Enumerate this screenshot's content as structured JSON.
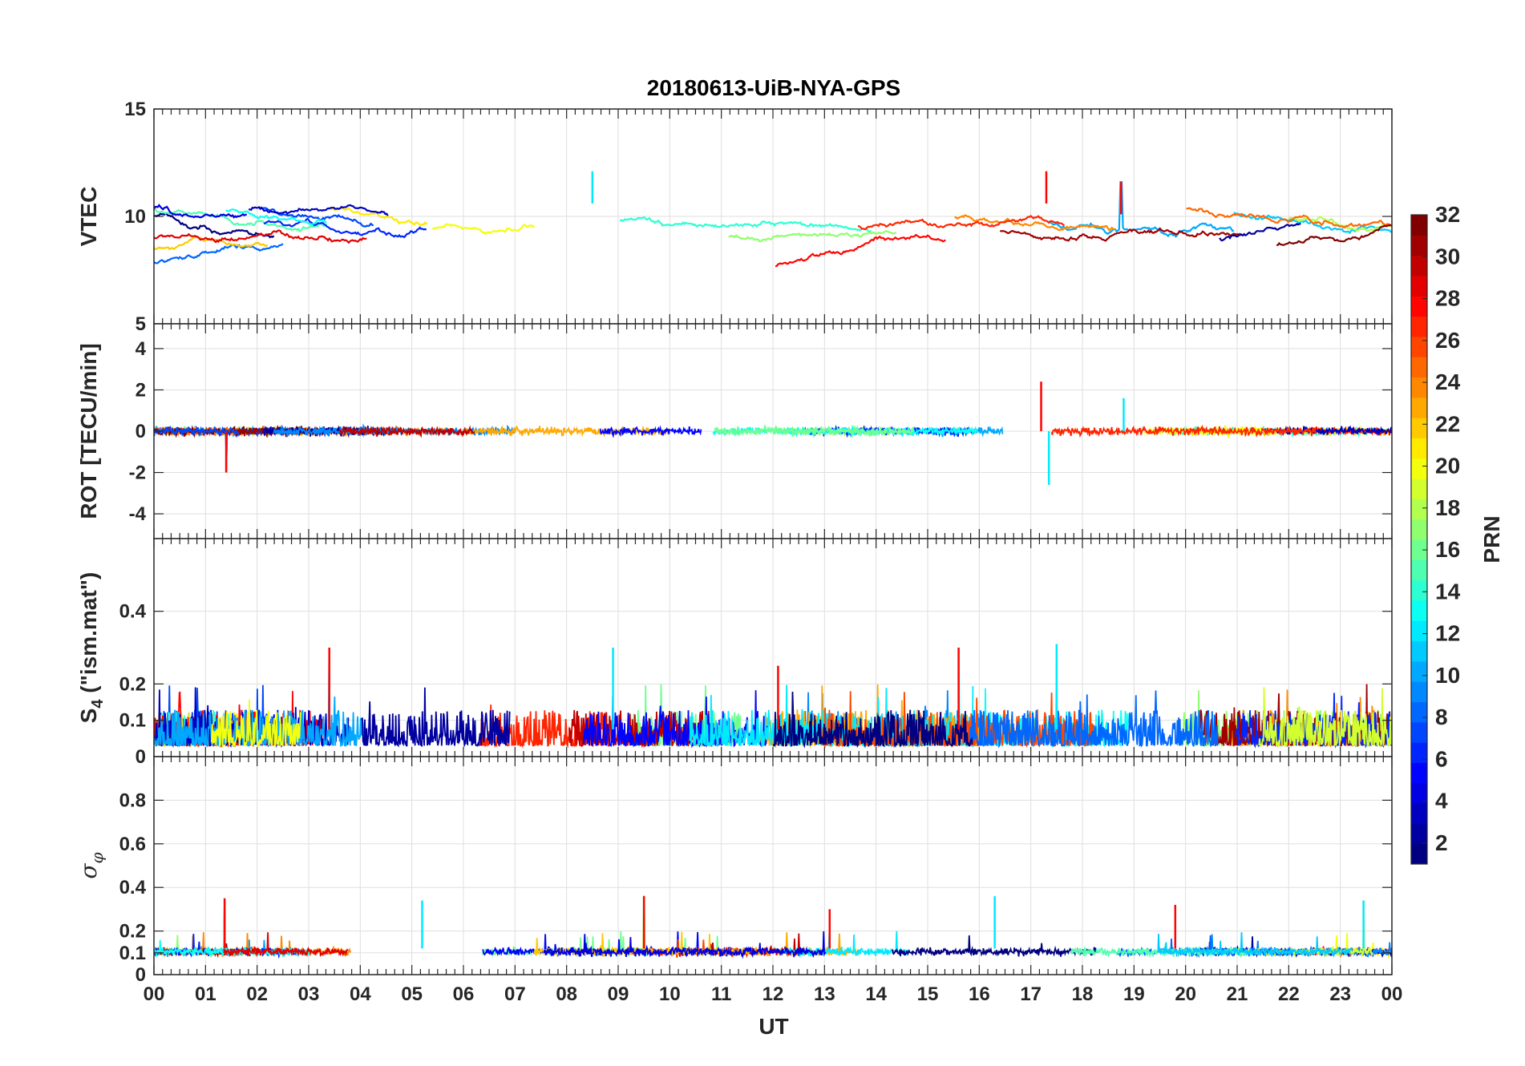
{
  "chart_data": {
    "type": "line",
    "title": "20180613-UiB-NYA-GPS",
    "xlabel": "UT",
    "x_ticks": [
      "00",
      "01",
      "02",
      "03",
      "04",
      "05",
      "06",
      "07",
      "08",
      "09",
      "10",
      "11",
      "12",
      "13",
      "14",
      "15",
      "16",
      "17",
      "18",
      "19",
      "20",
      "21",
      "22",
      "23",
      "00"
    ],
    "xlim_hours": [
      0,
      24
    ],
    "colorbar": {
      "label": "PRN",
      "range": [
        1,
        32
      ],
      "ticks": [
        "2",
        "4",
        "6",
        "8",
        "10",
        "12",
        "14",
        "16",
        "18",
        "20",
        "22",
        "24",
        "26",
        "28",
        "30",
        "32"
      ],
      "colormap": "jet"
    },
    "panels": [
      {
        "name": "vtec",
        "ylabel": "VTEC",
        "ylim": [
          5,
          15
        ],
        "y_ticks": [
          "5",
          "10",
          "15"
        ],
        "y_tick_values": [
          5,
          10,
          15
        ],
        "typical_range": [
          6.5,
          11.5
        ],
        "notable_peaks": [
          {
            "hour": 17.3,
            "value": 12.1
          },
          {
            "hour": 8.5,
            "value": 12.1
          },
          {
            "hour": 18.75,
            "value": 11.6
          }
        ]
      },
      {
        "name": "rot",
        "ylabel": "ROT [TECU/min]",
        "ylim": [
          -5.2,
          5.2
        ],
        "y_ticks": [
          "-4",
          "-2",
          "0",
          "2",
          "4"
        ],
        "y_tick_values": [
          -4,
          -2,
          0,
          2,
          4
        ],
        "typical_range": [
          -0.5,
          0.5
        ],
        "notable_peaks": [
          {
            "hour": 17.2,
            "value": 2.4
          },
          {
            "hour": 17.35,
            "value": -2.6
          },
          {
            "hour": 1.4,
            "value": -2.0
          },
          {
            "hour": 18.8,
            "value": 1.6
          }
        ]
      },
      {
        "name": "s4",
        "ylabel": "S4 (\"ism.mat\")",
        "ylabel_main": "S",
        "ylabel_sub": "4",
        "ylabel_rest": " (\"ism.mat\")",
        "ylim": [
          0,
          0.6
        ],
        "y_ticks": [
          "0",
          "0.1",
          "0.2",
          "0.4"
        ],
        "y_tick_values": [
          0,
          0.1,
          0.2,
          0.4
        ],
        "typical_range": [
          0.03,
          0.12
        ],
        "notable_peaks": [
          {
            "hour": 3.4,
            "value": 0.3
          },
          {
            "hour": 8.9,
            "value": 0.3
          },
          {
            "hour": 15.6,
            "value": 0.3
          },
          {
            "hour": 17.5,
            "value": 0.31
          },
          {
            "hour": 12.1,
            "value": 0.25
          }
        ]
      },
      {
        "name": "sigma-phi",
        "ylabel": "σφ",
        "ylabel_main": "σ",
        "ylabel_sub": "φ",
        "ylim": [
          0,
          1
        ],
        "y_ticks": [
          "0",
          "0.1",
          "0.2",
          "0.4",
          "0.6",
          "0.8"
        ],
        "y_tick_values": [
          0,
          0.1,
          0.2,
          0.4,
          0.6,
          0.8
        ],
        "typical_range": [
          0.09,
          0.15
        ],
        "notable_peaks": [
          {
            "hour": 1.37,
            "value": 0.35
          },
          {
            "hour": 5.2,
            "value": 0.34
          },
          {
            "hour": 9.5,
            "value": 0.36
          },
          {
            "hour": 16.3,
            "value": 0.36
          },
          {
            "hour": 19.8,
            "value": 0.32
          },
          {
            "hour": 23.45,
            "value": 0.34
          },
          {
            "hour": 13.1,
            "value": 0.3
          }
        ]
      }
    ]
  }
}
